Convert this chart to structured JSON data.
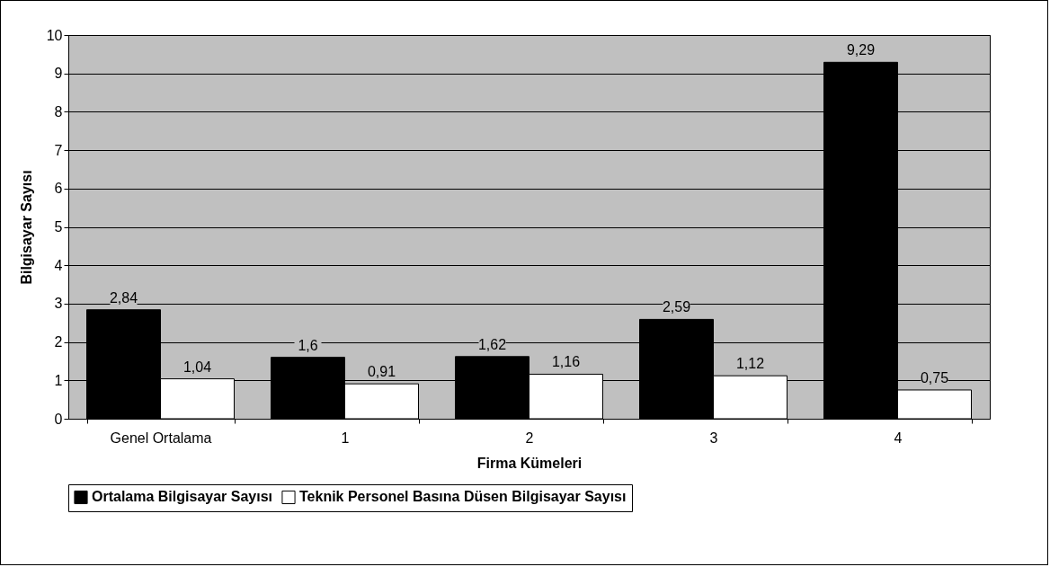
{
  "chart_data": {
    "type": "bar",
    "xlabel": "Firma Kümeleri",
    "ylabel": "Bilgisayar Sayısı",
    "categories": [
      "Genel Ortalama",
      "1",
      "2",
      "3",
      "4"
    ],
    "series": [
      {
        "name": "Ortalama Bilgisayar Sayısı",
        "color": "#000000",
        "values": [
          2.84,
          1.6,
          1.62,
          2.59,
          9.29
        ],
        "value_labels": [
          "2,84",
          "1,6",
          "1,62",
          "2,59",
          "9,29"
        ]
      },
      {
        "name": "Teknik Personel Basına Düsen Bilgisayar Sayısı",
        "color": "#ffffff",
        "values": [
          1.04,
          0.91,
          1.16,
          1.12,
          0.75
        ],
        "value_labels": [
          "1,04",
          "0,91",
          "1,16",
          "1,12",
          "0,75"
        ]
      }
    ],
    "ylim": [
      0,
      10
    ],
    "yticks": [
      0,
      1,
      2,
      3,
      4,
      5,
      6,
      7,
      8,
      9,
      10
    ],
    "grid": "y",
    "legend": "bottom"
  }
}
